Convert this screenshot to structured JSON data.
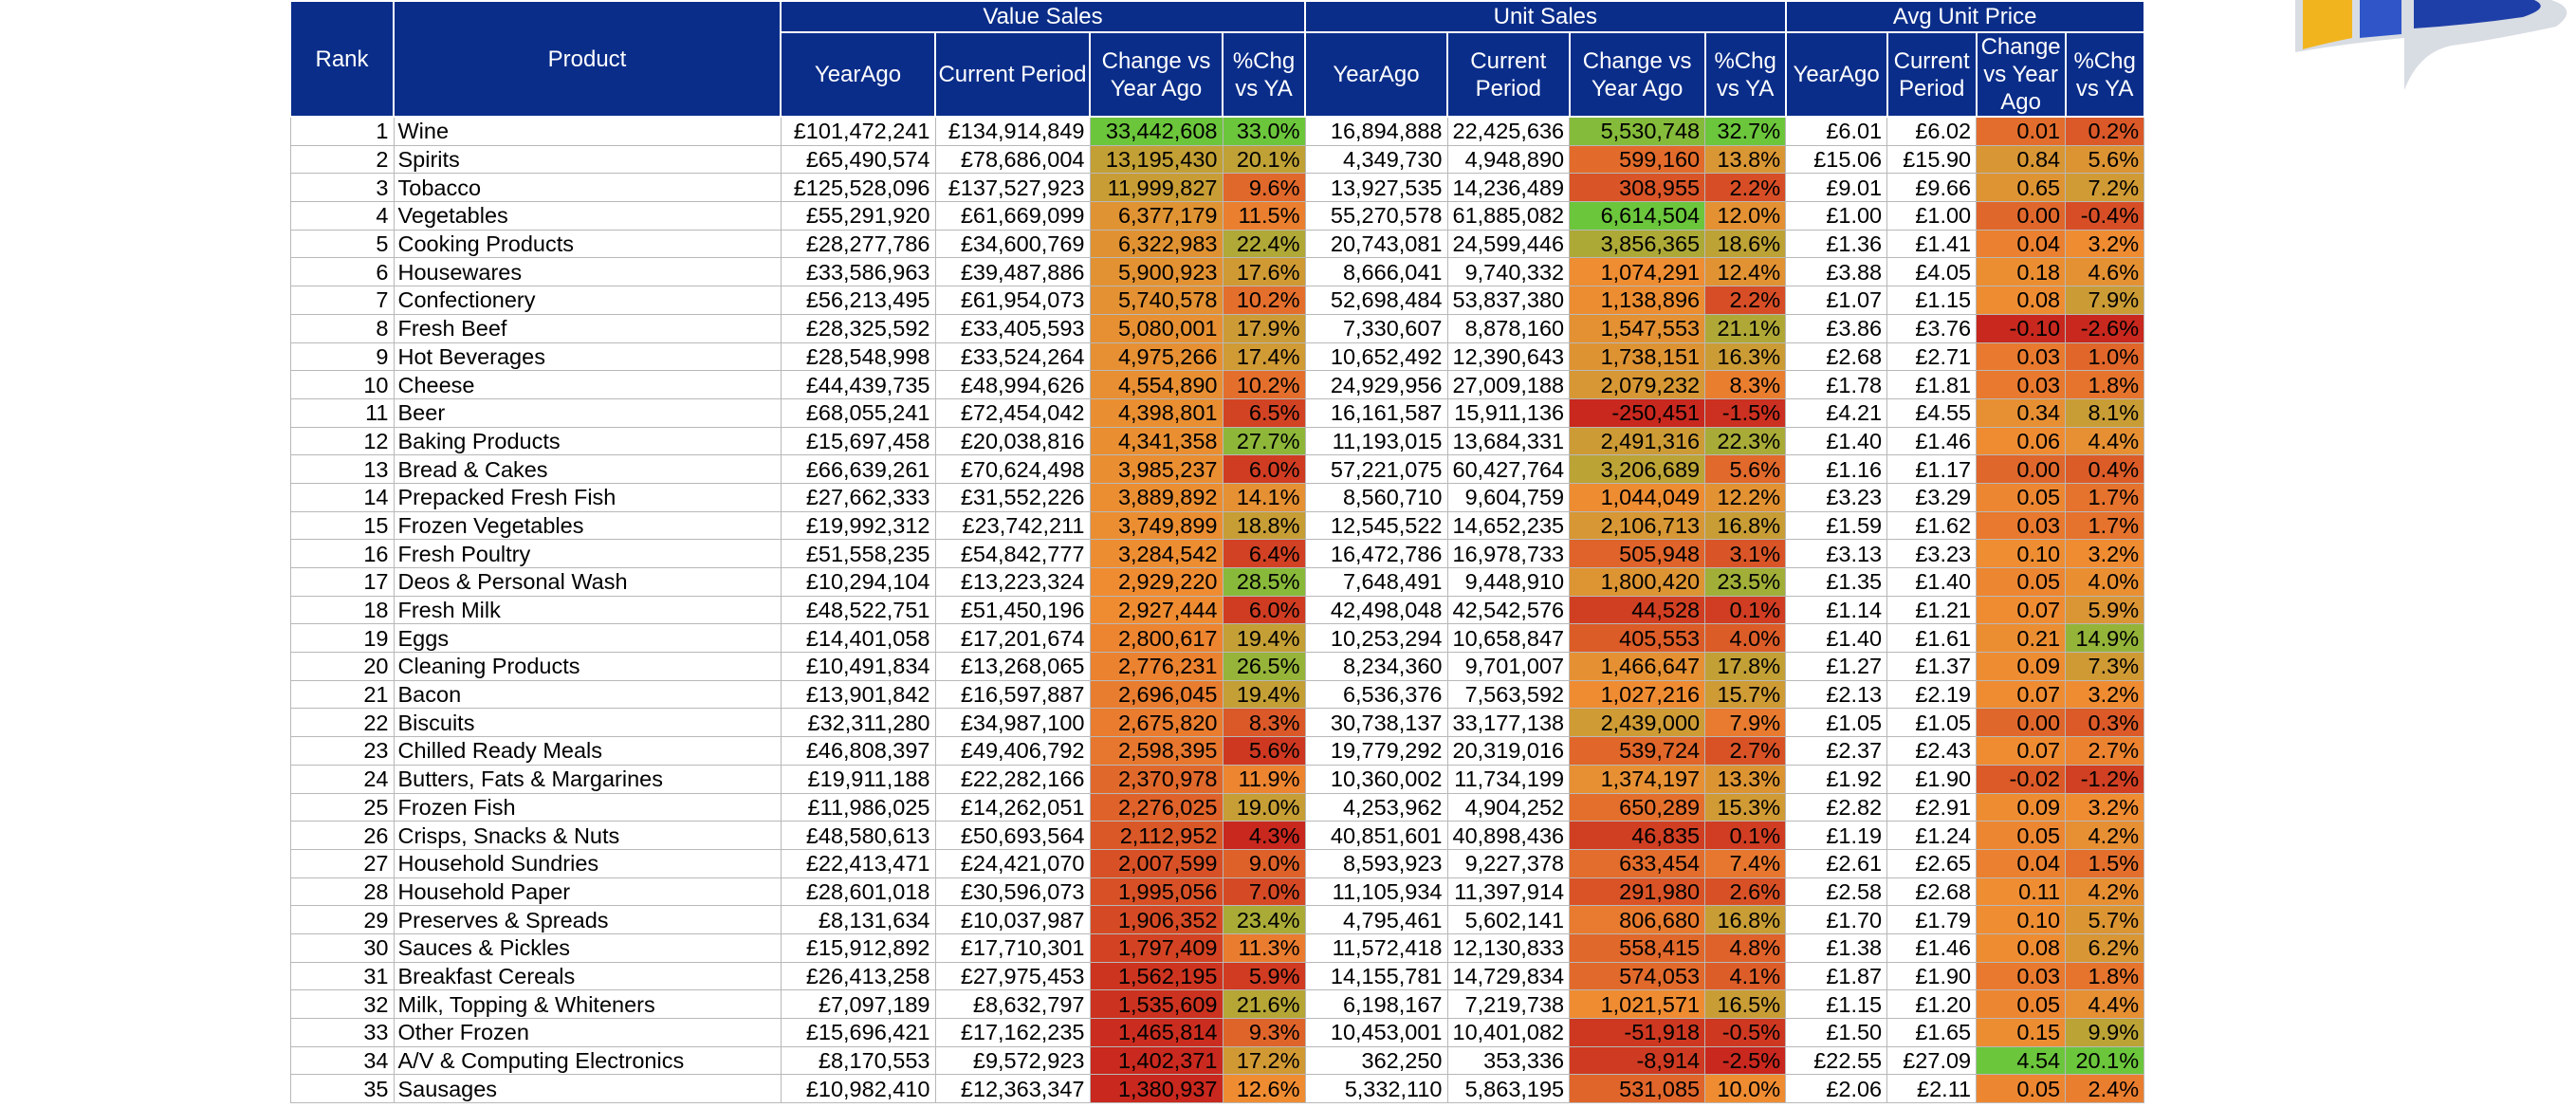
{
  "header": {
    "rank": "Rank",
    "product": "Product",
    "groups": [
      {
        "label": "Value Sales",
        "sub": [
          "YearAgo",
          "Current Period",
          "Change vs Year Ago",
          "%Chg vs YA"
        ]
      },
      {
        "label": "Unit Sales",
        "sub": [
          "YearAgo",
          "Current Period",
          "Change vs Year Ago",
          "%Chg vs YA"
        ]
      },
      {
        "label": "Avg Unit Price",
        "sub": [
          "YearAgo",
          "Current Period",
          "Change vs Year Ago",
          "%Chg vs YA"
        ]
      }
    ]
  },
  "colors": {
    "header_bg": "#0a2d8a",
    "scale_red": "#c8281e",
    "scale_orange": "#ef8c32",
    "scale_green": "#6cc63c"
  },
  "rows": [
    {
      "rank": "1",
      "product": "Wine",
      "v": [
        "£101,472,241",
        "£134,914,849",
        "33,442,608",
        "33.0%"
      ],
      "u": [
        "16,894,888",
        "22,425,636",
        "5,530,748",
        "32.7%"
      ],
      "p": [
        "£6.01",
        "£6.02",
        "0.01",
        "0.2%"
      ]
    },
    {
      "rank": "2",
      "product": "Spirits",
      "v": [
        "£65,490,574",
        "£78,686,004",
        "13,195,430",
        "20.1%"
      ],
      "u": [
        "4,349,730",
        "4,948,890",
        "599,160",
        "13.8%"
      ],
      "p": [
        "£15.06",
        "£15.90",
        "0.84",
        "5.6%"
      ]
    },
    {
      "rank": "3",
      "product": "Tobacco",
      "v": [
        "£125,528,096",
        "£137,527,923",
        "11,999,827",
        "9.6%"
      ],
      "u": [
        "13,927,535",
        "14,236,489",
        "308,955",
        "2.2%"
      ],
      "p": [
        "£9.01",
        "£9.66",
        "0.65",
        "7.2%"
      ]
    },
    {
      "rank": "4",
      "product": "Vegetables",
      "v": [
        "£55,291,920",
        "£61,669,099",
        "6,377,179",
        "11.5%"
      ],
      "u": [
        "55,270,578",
        "61,885,082",
        "6,614,504",
        "12.0%"
      ],
      "p": [
        "£1.00",
        "£1.00",
        "0.00",
        "-0.4%"
      ]
    },
    {
      "rank": "5",
      "product": "Cooking Products",
      "v": [
        "£28,277,786",
        "£34,600,769",
        "6,322,983",
        "22.4%"
      ],
      "u": [
        "20,743,081",
        "24,599,446",
        "3,856,365",
        "18.6%"
      ],
      "p": [
        "£1.36",
        "£1.41",
        "0.04",
        "3.2%"
      ]
    },
    {
      "rank": "6",
      "product": "Housewares",
      "v": [
        "£33,586,963",
        "£39,487,886",
        "5,900,923",
        "17.6%"
      ],
      "u": [
        "8,666,041",
        "9,740,332",
        "1,074,291",
        "12.4%"
      ],
      "p": [
        "£3.88",
        "£4.05",
        "0.18",
        "4.6%"
      ]
    },
    {
      "rank": "7",
      "product": "Confectionery",
      "v": [
        "£56,213,495",
        "£61,954,073",
        "5,740,578",
        "10.2%"
      ],
      "u": [
        "52,698,484",
        "53,837,380",
        "1,138,896",
        "2.2%"
      ],
      "p": [
        "£1.07",
        "£1.15",
        "0.08",
        "7.9%"
      ]
    },
    {
      "rank": "8",
      "product": "Fresh Beef",
      "v": [
        "£28,325,592",
        "£33,405,593",
        "5,080,001",
        "17.9%"
      ],
      "u": [
        "7,330,607",
        "8,878,160",
        "1,547,553",
        "21.1%"
      ],
      "p": [
        "£3.86",
        "£3.76",
        "-0.10",
        "-2.6%"
      ]
    },
    {
      "rank": "9",
      "product": "Hot Beverages",
      "v": [
        "£28,548,998",
        "£33,524,264",
        "4,975,266",
        "17.4%"
      ],
      "u": [
        "10,652,492",
        "12,390,643",
        "1,738,151",
        "16.3%"
      ],
      "p": [
        "£2.68",
        "£2.71",
        "0.03",
        "1.0%"
      ]
    },
    {
      "rank": "10",
      "product": "Cheese",
      "v": [
        "£44,439,735",
        "£48,994,626",
        "4,554,890",
        "10.2%"
      ],
      "u": [
        "24,929,956",
        "27,009,188",
        "2,079,232",
        "8.3%"
      ],
      "p": [
        "£1.78",
        "£1.81",
        "0.03",
        "1.8%"
      ]
    },
    {
      "rank": "11",
      "product": "Beer",
      "v": [
        "£68,055,241",
        "£72,454,042",
        "4,398,801",
        "6.5%"
      ],
      "u": [
        "16,161,587",
        "15,911,136",
        "-250,451",
        "-1.5%"
      ],
      "p": [
        "£4.21",
        "£4.55",
        "0.34",
        "8.1%"
      ]
    },
    {
      "rank": "12",
      "product": "Baking Products",
      "v": [
        "£15,697,458",
        "£20,038,816",
        "4,341,358",
        "27.7%"
      ],
      "u": [
        "11,193,015",
        "13,684,331",
        "2,491,316",
        "22.3%"
      ],
      "p": [
        "£1.40",
        "£1.46",
        "0.06",
        "4.4%"
      ]
    },
    {
      "rank": "13",
      "product": "Bread & Cakes",
      "v": [
        "£66,639,261",
        "£70,624,498",
        "3,985,237",
        "6.0%"
      ],
      "u": [
        "57,221,075",
        "60,427,764",
        "3,206,689",
        "5.6%"
      ],
      "p": [
        "£1.16",
        "£1.17",
        "0.00",
        "0.4%"
      ]
    },
    {
      "rank": "14",
      "product": "Prepacked Fresh Fish",
      "v": [
        "£27,662,333",
        "£31,552,226",
        "3,889,892",
        "14.1%"
      ],
      "u": [
        "8,560,710",
        "9,604,759",
        "1,044,049",
        "12.2%"
      ],
      "p": [
        "£3.23",
        "£3.29",
        "0.05",
        "1.7%"
      ]
    },
    {
      "rank": "15",
      "product": "Frozen Vegetables",
      "v": [
        "£19,992,312",
        "£23,742,211",
        "3,749,899",
        "18.8%"
      ],
      "u": [
        "12,545,522",
        "14,652,235",
        "2,106,713",
        "16.8%"
      ],
      "p": [
        "£1.59",
        "£1.62",
        "0.03",
        "1.7%"
      ]
    },
    {
      "rank": "16",
      "product": "Fresh Poultry",
      "v": [
        "£51,558,235",
        "£54,842,777",
        "3,284,542",
        "6.4%"
      ],
      "u": [
        "16,472,786",
        "16,978,733",
        "505,948",
        "3.1%"
      ],
      "p": [
        "£3.13",
        "£3.23",
        "0.10",
        "3.2%"
      ]
    },
    {
      "rank": "17",
      "product": "Deos & Personal Wash",
      "v": [
        "£10,294,104",
        "£13,223,324",
        "2,929,220",
        "28.5%"
      ],
      "u": [
        "7,648,491",
        "9,448,910",
        "1,800,420",
        "23.5%"
      ],
      "p": [
        "£1.35",
        "£1.40",
        "0.05",
        "4.0%"
      ]
    },
    {
      "rank": "18",
      "product": "Fresh Milk",
      "v": [
        "£48,522,751",
        "£51,450,196",
        "2,927,444",
        "6.0%"
      ],
      "u": [
        "42,498,048",
        "42,542,576",
        "44,528",
        "0.1%"
      ],
      "p": [
        "£1.14",
        "£1.21",
        "0.07",
        "5.9%"
      ]
    },
    {
      "rank": "19",
      "product": "Eggs",
      "v": [
        "£14,401,058",
        "£17,201,674",
        "2,800,617",
        "19.4%"
      ],
      "u": [
        "10,253,294",
        "10,658,847",
        "405,553",
        "4.0%"
      ],
      "p": [
        "£1.40",
        "£1.61",
        "0.21",
        "14.9%"
      ]
    },
    {
      "rank": "20",
      "product": "Cleaning Products",
      "v": [
        "£10,491,834",
        "£13,268,065",
        "2,776,231",
        "26.5%"
      ],
      "u": [
        "8,234,360",
        "9,701,007",
        "1,466,647",
        "17.8%"
      ],
      "p": [
        "£1.27",
        "£1.37",
        "0.09",
        "7.3%"
      ]
    },
    {
      "rank": "21",
      "product": "Bacon",
      "v": [
        "£13,901,842",
        "£16,597,887",
        "2,696,045",
        "19.4%"
      ],
      "u": [
        "6,536,376",
        "7,563,592",
        "1,027,216",
        "15.7%"
      ],
      "p": [
        "£2.13",
        "£2.19",
        "0.07",
        "3.2%"
      ]
    },
    {
      "rank": "22",
      "product": "Biscuits",
      "v": [
        "£32,311,280",
        "£34,987,100",
        "2,675,820",
        "8.3%"
      ],
      "u": [
        "30,738,137",
        "33,177,138",
        "2,439,000",
        "7.9%"
      ],
      "p": [
        "£1.05",
        "£1.05",
        "0.00",
        "0.3%"
      ]
    },
    {
      "rank": "23",
      "product": "Chilled Ready Meals",
      "v": [
        "£46,808,397",
        "£49,406,792",
        "2,598,395",
        "5.6%"
      ],
      "u": [
        "19,779,292",
        "20,319,016",
        "539,724",
        "2.7%"
      ],
      "p": [
        "£2.37",
        "£2.43",
        "0.07",
        "2.7%"
      ]
    },
    {
      "rank": "24",
      "product": "Butters, Fats & Margarines",
      "v": [
        "£19,911,188",
        "£22,282,166",
        "2,370,978",
        "11.9%"
      ],
      "u": [
        "10,360,002",
        "11,734,199",
        "1,374,197",
        "13.3%"
      ],
      "p": [
        "£1.92",
        "£1.90",
        "-0.02",
        "-1.2%"
      ]
    },
    {
      "rank": "25",
      "product": "Frozen Fish",
      "v": [
        "£11,986,025",
        "£14,262,051",
        "2,276,025",
        "19.0%"
      ],
      "u": [
        "4,253,962",
        "4,904,252",
        "650,289",
        "15.3%"
      ],
      "p": [
        "£2.82",
        "£2.91",
        "0.09",
        "3.2%"
      ]
    },
    {
      "rank": "26",
      "product": "Crisps, Snacks & Nuts",
      "v": [
        "£48,580,613",
        "£50,693,564",
        "2,112,952",
        "4.3%"
      ],
      "u": [
        "40,851,601",
        "40,898,436",
        "46,835",
        "0.1%"
      ],
      "p": [
        "£1.19",
        "£1.24",
        "0.05",
        "4.2%"
      ]
    },
    {
      "rank": "27",
      "product": "Household Sundries",
      "v": [
        "£22,413,471",
        "£24,421,070",
        "2,007,599",
        "9.0%"
      ],
      "u": [
        "8,593,923",
        "9,227,378",
        "633,454",
        "7.4%"
      ],
      "p": [
        "£2.61",
        "£2.65",
        "0.04",
        "1.5%"
      ]
    },
    {
      "rank": "28",
      "product": "Household Paper",
      "v": [
        "£28,601,018",
        "£30,596,073",
        "1,995,056",
        "7.0%"
      ],
      "u": [
        "11,105,934",
        "11,397,914",
        "291,980",
        "2.6%"
      ],
      "p": [
        "£2.58",
        "£2.68",
        "0.11",
        "4.2%"
      ]
    },
    {
      "rank": "29",
      "product": "Preserves & Spreads",
      "v": [
        "£8,131,634",
        "£10,037,987",
        "1,906,352",
        "23.4%"
      ],
      "u": [
        "4,795,461",
        "5,602,141",
        "806,680",
        "16.8%"
      ],
      "p": [
        "£1.70",
        "£1.79",
        "0.10",
        "5.7%"
      ]
    },
    {
      "rank": "30",
      "product": "Sauces & Pickles",
      "v": [
        "£15,912,892",
        "£17,710,301",
        "1,797,409",
        "11.3%"
      ],
      "u": [
        "11,572,418",
        "12,130,833",
        "558,415",
        "4.8%"
      ],
      "p": [
        "£1.38",
        "£1.46",
        "0.08",
        "6.2%"
      ]
    },
    {
      "rank": "31",
      "product": "Breakfast Cereals",
      "v": [
        "£26,413,258",
        "£27,975,453",
        "1,562,195",
        "5.9%"
      ],
      "u": [
        "14,155,781",
        "14,729,834",
        "574,053",
        "4.1%"
      ],
      "p": [
        "£1.87",
        "£1.90",
        "0.03",
        "1.8%"
      ]
    },
    {
      "rank": "32",
      "product": "Milk, Topping & Whiteners",
      "v": [
        "£7,097,189",
        "£8,632,797",
        "1,535,609",
        "21.6%"
      ],
      "u": [
        "6,198,167",
        "7,219,738",
        "1,021,571",
        "16.5%"
      ],
      "p": [
        "£1.15",
        "£1.20",
        "0.05",
        "4.4%"
      ]
    },
    {
      "rank": "33",
      "product": "Other Frozen",
      "v": [
        "£15,696,421",
        "£17,162,235",
        "1,465,814",
        "9.3%"
      ],
      "u": [
        "10,453,001",
        "10,401,082",
        "-51,918",
        "-0.5%"
      ],
      "p": [
        "£1.50",
        "£1.65",
        "0.15",
        "9.9%"
      ]
    },
    {
      "rank": "34",
      "product": "A/V & Computing Electronics",
      "v": [
        "£8,170,553",
        "£9,572,923",
        "1,402,371",
        "17.2%"
      ],
      "u": [
        "362,250",
        "353,336",
        "-8,914",
        "-2.5%"
      ],
      "p": [
        "£22.55",
        "£27.09",
        "4.54",
        "20.1%"
      ]
    },
    {
      "rank": "35",
      "product": "Sausages",
      "v": [
        "£10,982,410",
        "£12,363,347",
        "1,380,937",
        "12.6%"
      ],
      "u": [
        "5,332,110",
        "5,863,195",
        "531,085",
        "10.0%"
      ],
      "p": [
        "£2.06",
        "£2.11",
        "0.05",
        "2.4%"
      ]
    }
  ]
}
